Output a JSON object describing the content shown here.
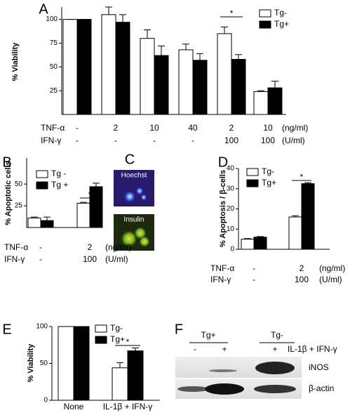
{
  "chart_data": [
    {
      "type": "bar",
      "panel": "A",
      "ylabel": "% Viability",
      "ylim": [
        0,
        113
      ],
      "yticks": [
        25,
        50,
        75,
        100
      ],
      "legend": "upper right",
      "edgecolor": "#000000",
      "series": [
        {
          "name": "Tg-",
          "color": "#ffffff",
          "values": [
            100,
            105,
            80,
            68,
            85,
            24
          ],
          "errors": [
            0,
            8,
            9,
            6,
            7,
            1
          ]
        },
        {
          "name": "Tg+",
          "color": "#000000",
          "values": [
            100,
            97,
            62,
            57,
            58,
            28
          ],
          "errors": [
            0,
            8,
            10,
            7,
            5,
            7
          ]
        }
      ],
      "conditions": [
        {
          "label": "TNF-α",
          "values": [
            "-",
            "2",
            "10",
            "40",
            "2",
            "10"
          ],
          "unit": "(ng/ml)"
        },
        {
          "label": "IFN-γ",
          "values": [
            "-",
            "-",
            "-",
            "-",
            "100",
            "100"
          ],
          "unit": "(U/ml)"
        }
      ],
      "annotations": [
        "*"
      ]
    },
    {
      "type": "bar",
      "panel": "B",
      "ylabel": "% Apoptotic cells",
      "ylim": [
        0,
        80
      ],
      "yticks": [
        25,
        50
      ],
      "legend": "upper left",
      "edgecolor": "#000000",
      "series": [
        {
          "name": "Tg -",
          "color": "#ffffff",
          "values": [
            11,
            28
          ],
          "errors": [
            1,
            1
          ]
        },
        {
          "name": "Tg +",
          "color": "#000000",
          "values": [
            8,
            47
          ],
          "errors": [
            4,
            4
          ]
        }
      ],
      "conditions": [
        {
          "label": "TNF-α",
          "values": [
            "-",
            "2"
          ],
          "unit": "(ng/ml)"
        },
        {
          "label": "IFN-γ",
          "values": [
            "-",
            "100"
          ],
          "unit": "(U/ml)"
        }
      ],
      "annotations": [
        "*"
      ]
    },
    {
      "type": "bar",
      "panel": "D",
      "ylabel": "% Apoptosis / β-cells",
      "ylim": [
        0,
        40
      ],
      "yticks": [
        0,
        10,
        20,
        30,
        40
      ],
      "legend": "upper left",
      "edgecolor": "#000000",
      "series": [
        {
          "name": "Tg-",
          "color": "#ffffff",
          "values": [
            5,
            16
          ],
          "errors": [
            0.3,
            0.6
          ]
        },
        {
          "name": "Tg+",
          "color": "#000000",
          "values": [
            6,
            32.5
          ],
          "errors": [
            0.3,
            0.5
          ]
        }
      ],
      "conditions": [
        {
          "label": "TNF-α",
          "values": [
            "-",
            "2"
          ],
          "unit": "(ng/ml)"
        },
        {
          "label": "IFN-γ",
          "values": [
            "-",
            "100"
          ],
          "unit": "(U/ml)"
        }
      ],
      "annotations": [
        "*"
      ]
    },
    {
      "type": "bar",
      "panel": "E",
      "ylabel": "% Viability",
      "ylim": [
        0,
        100
      ],
      "yticks": [
        0,
        50,
        100
      ],
      "legend": "upper right",
      "edgecolor": "#000000",
      "categories": [
        "None",
        "IL-1β + IFN-γ"
      ],
      "series": [
        {
          "name": "Tg-",
          "color": "#ffffff",
          "values": [
            100,
            44
          ],
          "errors": [
            0,
            7
          ]
        },
        {
          "name": "Tg+",
          "color": "#000000",
          "values": [
            100,
            67
          ],
          "errors": [
            0,
            4
          ]
        }
      ],
      "annotations": [
        "*"
      ]
    }
  ],
  "figure": {
    "c": {
      "panel": "C",
      "labels": [
        "Hoechst",
        "Insulin"
      ]
    },
    "f": {
      "panel": "F",
      "groups": [
        "Tg+",
        "Tg-"
      ],
      "lanes": [
        "-",
        "+",
        "+"
      ],
      "treatment": "IL-1β + IFN-γ",
      "bands": [
        "iNOS",
        "β-actin"
      ]
    }
  }
}
